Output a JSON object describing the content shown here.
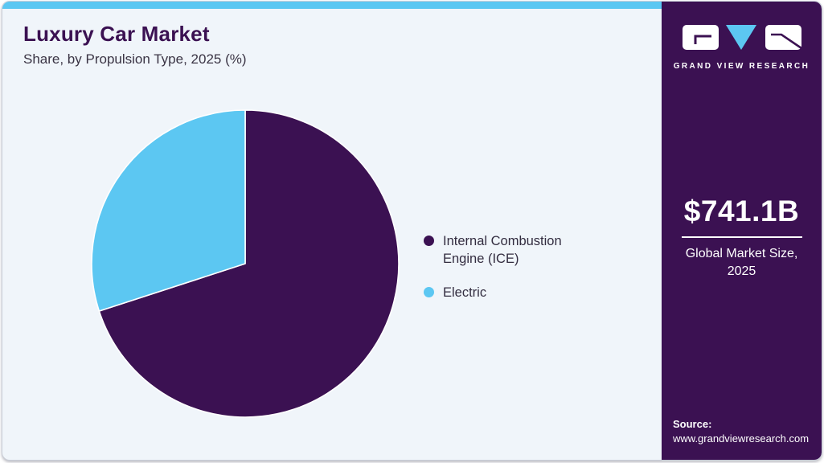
{
  "header": {
    "title": "Luxury Car Market",
    "subtitle": "Share, by Propulsion Type, 2025 (%)"
  },
  "sidebar": {
    "brand_name": "GRAND VIEW RESEARCH",
    "market_size_value": "$741.1B",
    "market_size_label_line1": "Global Market Size,",
    "market_size_label_line2": "2025",
    "source_label": "Source:",
    "source_url": "www.grandviewresearch.com"
  },
  "theme": {
    "primary_purple": "#3b1152",
    "accent_blue": "#5cc7f2",
    "card_background": "#f0f5fa",
    "text_dark": "#332d40"
  },
  "chart_data": {
    "type": "pie",
    "title": "Luxury Car Market Share, by Propulsion Type, 2025 (%)",
    "labels": [
      "Internal Combustion Engine (ICE)",
      "Electric"
    ],
    "values": [
      70,
      30
    ],
    "colors": [
      "#3b1152",
      "#5cc7f2"
    ],
    "start_angle_deg": 0,
    "direction": "clockwise",
    "legend_position": "right",
    "data_labels_shown": false
  }
}
